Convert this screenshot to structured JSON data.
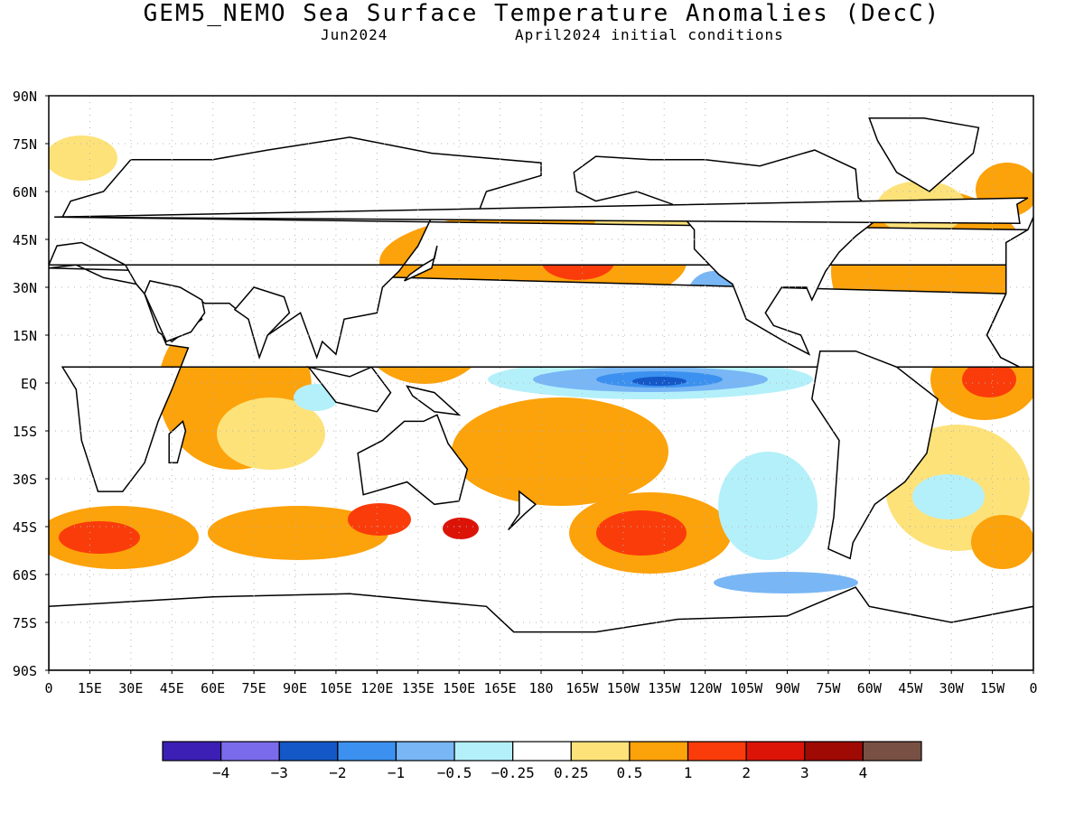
{
  "title": "GEM5_NEMO Sea Surface Temperature Anomalies (DecC)",
  "subtitle_left": "Jun2024",
  "subtitle_right": "April2024 initial conditions",
  "lat_ticks": [
    "90N",
    "75N",
    "60N",
    "45N",
    "30N",
    "15N",
    "EQ",
    "15S",
    "30S",
    "45S",
    "60S",
    "75S",
    "90S"
  ],
  "lon_ticks": [
    "0",
    "15E",
    "30E",
    "45E",
    "60E",
    "75E",
    "90E",
    "105E",
    "120E",
    "135E",
    "150E",
    "165E",
    "180",
    "165W",
    "150W",
    "135W",
    "120W",
    "105W",
    "90W",
    "75W",
    "60W",
    "45W",
    "30W",
    "15W",
    "0"
  ],
  "colorbar": {
    "colors": [
      "#3c1fb4",
      "#7a6bec",
      "#1458c8",
      "#3c91f0",
      "#78b6f5",
      "#b4f0fa",
      "#ffffff",
      "#fde27a",
      "#fca20a",
      "#fa3c0a",
      "#dc1408",
      "#a00a05",
      "#785044"
    ],
    "labels": [
      "−4",
      "−3",
      "−2",
      "−1",
      "−0.5",
      "−0.25",
      "0.25",
      "0.5",
      "1",
      "2",
      "3",
      "4"
    ]
  },
  "colors": {
    "land": "#ffffff",
    "coast": "#000000",
    "grid": "#b4b4b4",
    "frame": "#000000"
  }
}
